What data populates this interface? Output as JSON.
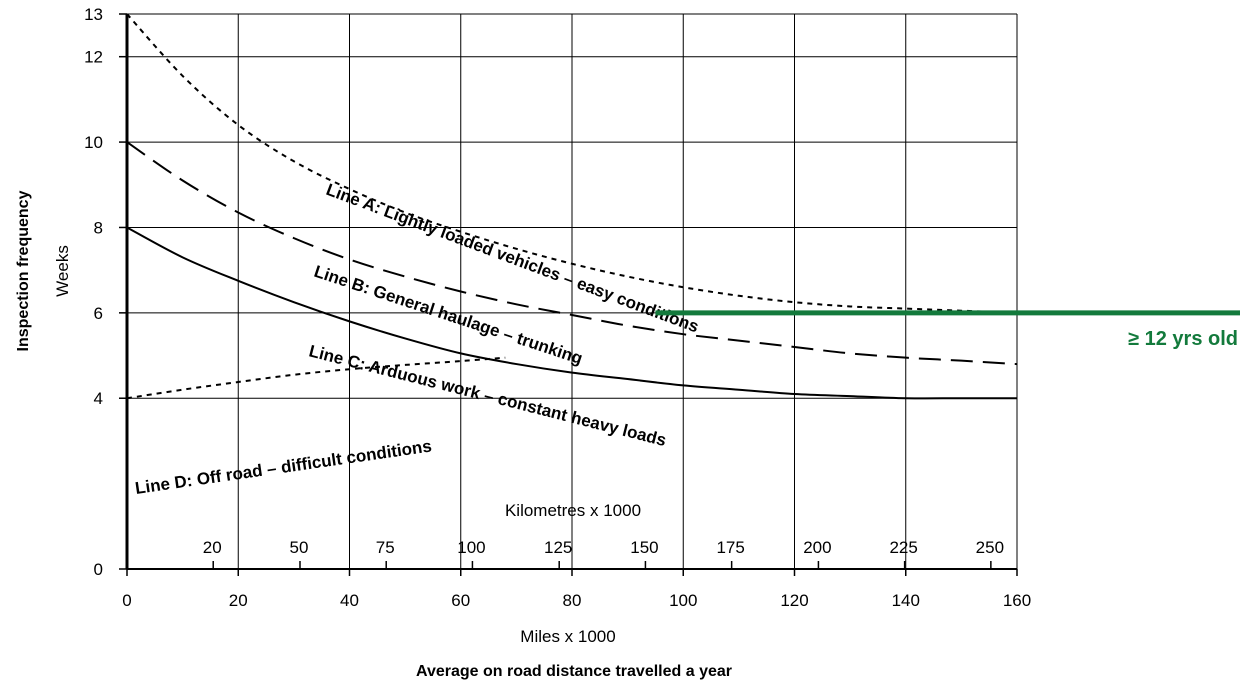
{
  "chart_data": {
    "type": "line",
    "ylabel": "Inspection frequency",
    "ylabel_unit": "Weeks",
    "xlabel_miles": "Miles x 1000",
    "xlabel_km": "Kilometres x 1000",
    "xlabel_main": "Average on road distance travelled a year",
    "xlim": [
      0,
      160
    ],
    "ylim": [
      0,
      13
    ],
    "grid": true,
    "x_ticks": [
      "0",
      "20",
      "40",
      "60",
      "80",
      "100",
      "120",
      "140",
      "160"
    ],
    "y_ticks": [
      "0",
      "4",
      "6",
      "8",
      "10",
      "12",
      "13"
    ],
    "km_ticks": [
      "20",
      "50",
      "75",
      "100",
      "125",
      "150",
      "175",
      "200",
      "225",
      "250"
    ],
    "km_tick_positions_miles": [
      15.5,
      31.1,
      46.6,
      62.1,
      77.7,
      93.2,
      108.7,
      124.3,
      139.8,
      155.3
    ],
    "series": [
      {
        "name": "Line A: Lightly loaded vehicles – easy conditions",
        "style": "dotted",
        "x": [
          0,
          10,
          20,
          30,
          40,
          50,
          60,
          70,
          80,
          90,
          100,
          110,
          120,
          130,
          140,
          150,
          160
        ],
        "y": [
          13.0,
          11.55,
          10.4,
          9.55,
          8.9,
          8.35,
          7.9,
          7.5,
          7.15,
          6.85,
          6.6,
          6.4,
          6.25,
          6.15,
          6.1,
          6.05,
          6.0
        ]
      },
      {
        "name": "Line B: General haulage – trunking",
        "style": "dashed",
        "x": [
          0,
          10,
          20,
          30,
          40,
          50,
          60,
          70,
          80,
          90,
          100,
          110,
          120,
          130,
          140,
          150,
          160
        ],
        "y": [
          10.0,
          9.1,
          8.35,
          7.75,
          7.25,
          6.85,
          6.5,
          6.2,
          5.95,
          5.7,
          5.5,
          5.35,
          5.2,
          5.05,
          4.95,
          4.88,
          4.8
        ]
      },
      {
        "name": "Line C: Arduous work – constant heavy loads",
        "style": "solid",
        "x": [
          0,
          10,
          20,
          30,
          40,
          50,
          60,
          70,
          80,
          90,
          100,
          110,
          120,
          130,
          140,
          150,
          160
        ],
        "y": [
          8.0,
          7.3,
          6.75,
          6.25,
          5.8,
          5.4,
          5.05,
          4.8,
          4.6,
          4.45,
          4.3,
          4.2,
          4.1,
          4.05,
          4.0,
          4.0,
          4.0
        ]
      },
      {
        "name": "Line D: Off road – difficult conditions",
        "style": "dotted",
        "x": [
          0,
          10,
          20,
          30,
          40,
          50,
          60,
          68
        ],
        "y": [
          4.0,
          4.2,
          4.38,
          4.55,
          4.68,
          4.78,
          4.87,
          4.95
        ]
      }
    ],
    "annotations": [
      {
        "text": "≥ 12 yrs old",
        "y": 6.0,
        "x_start": 95,
        "color": "#137a3c"
      }
    ]
  }
}
